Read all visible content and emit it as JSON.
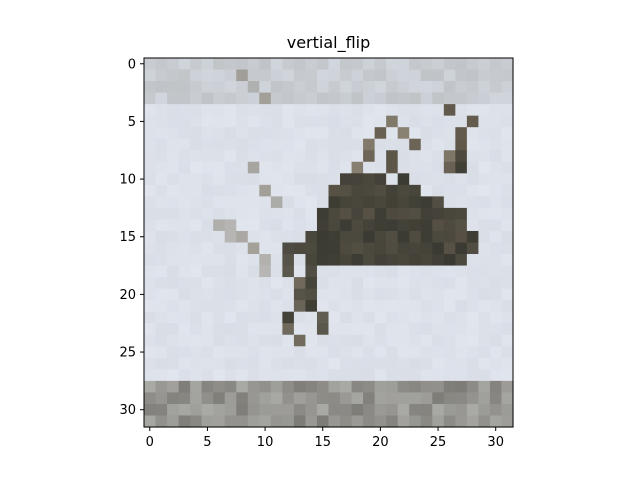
{
  "figure": {
    "title": "vertial_flip",
    "x_ticks": [
      "0",
      "5",
      "10",
      "15",
      "20",
      "25",
      "30"
    ],
    "y_ticks": [
      "0",
      "5",
      "10",
      "15",
      "20",
      "25",
      "30"
    ]
  },
  "image": {
    "content": "low-resolution 32x32 pixel image of a dark animal (bird/deer-like) against a pale blue-gray sky with a gray ground strip at bottom",
    "palette": {
      "sky": "#d8dde6",
      "sky_light": "#e3e7ef",
      "ground": "#a9a9a6",
      "ground_dark": "#7d7b76",
      "animal_dark": "#3a3a32",
      "animal_mid": "#5e574a",
      "animal_light": "#8a8272",
      "top_band": "#b5b8b9"
    }
  }
}
